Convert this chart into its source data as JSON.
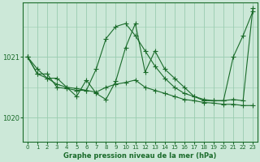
{
  "bg_color": "#cce8d8",
  "grid_color": "#99ccb0",
  "line_color": "#1a6b2a",
  "title": "Graphe pression niveau de la mer (hPa)",
  "xlim": [
    -0.5,
    23.5
  ],
  "ylim": [
    1019.6,
    1021.9
  ],
  "yticks": [
    1020,
    1021
  ],
  "xticks": [
    0,
    1,
    2,
    3,
    4,
    5,
    6,
    7,
    8,
    9,
    10,
    11,
    12,
    13,
    14,
    15,
    16,
    17,
    18,
    19,
    20,
    21,
    22,
    23
  ],
  "series1_x": [
    0,
    1,
    2,
    3,
    4,
    5,
    6,
    7,
    8,
    9,
    10,
    11,
    12,
    13,
    14,
    15,
    16,
    17,
    18,
    19,
    20,
    21,
    22,
    23
  ],
  "series1_y": [
    1021.0,
    1020.72,
    1020.65,
    1020.65,
    1020.5,
    1020.48,
    1020.45,
    1020.42,
    1020.5,
    1020.55,
    1020.58,
    1020.62,
    1020.5,
    1020.45,
    1020.4,
    1020.35,
    1020.3,
    1020.28,
    1020.25,
    1020.24,
    1020.22,
    1020.22,
    1020.2,
    1020.2
  ],
  "series2_x": [
    0,
    1,
    2,
    3,
    4,
    5,
    6,
    7,
    8,
    9,
    10,
    11,
    12,
    13,
    14,
    15,
    16,
    17,
    18,
    19,
    20,
    21,
    22,
    23
  ],
  "series2_y": [
    1021.0,
    1020.8,
    1020.65,
    1020.55,
    1020.5,
    1020.35,
    1020.62,
    1020.4,
    1020.3,
    1020.6,
    1021.15,
    1021.55,
    1020.75,
    1021.1,
    1020.8,
    1020.65,
    1020.5,
    1020.35,
    1020.28,
    1020.28,
    1020.28,
    1020.3,
    1020.28,
    1021.8
  ],
  "series3_x": [
    0,
    1,
    2,
    3,
    4,
    5,
    6,
    7,
    8,
    9,
    10,
    11,
    12,
    13,
    14,
    15,
    16,
    17,
    18,
    19,
    20,
    21,
    22,
    23
  ],
  "series3_y": [
    1021.0,
    1020.72,
    1020.72,
    1020.5,
    1020.48,
    1020.45,
    1020.45,
    1020.8,
    1021.3,
    1021.5,
    1021.55,
    1021.35,
    1021.1,
    1020.85,
    1020.65,
    1020.5,
    1020.4,
    1020.35,
    1020.3,
    1020.28,
    1020.28,
    1021.0,
    1021.35,
    1021.75
  ]
}
